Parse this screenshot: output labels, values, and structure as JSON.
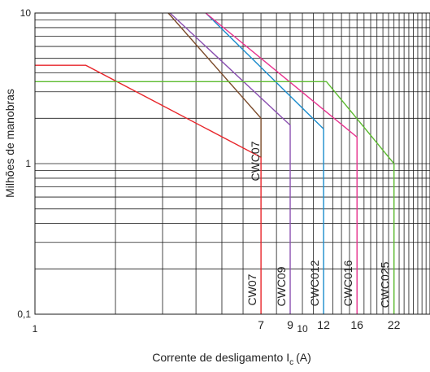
{
  "chart_data": {
    "type": "line",
    "xlabel": "Corrente de desligamento I",
    "xlabel_subscript": "c",
    "xlabel_unit": "(A)",
    "ylabel": "Milhões de manobras",
    "x_scale": "log",
    "y_scale": "log",
    "xlim": [
      1,
      30
    ],
    "ylim": [
      0.1,
      10
    ],
    "x_ticks": [
      "1",
      "7",
      "9",
      "10",
      "12",
      "16",
      "22"
    ],
    "y_ticks": [
      "0,1",
      "1",
      "10"
    ],
    "grid": true,
    "series": [
      {
        "color": "#e8262b",
        "name": "CWC07",
        "points": [
          [
            1,
            4.5
          ],
          [
            1.55,
            4.5
          ],
          [
            7,
            1.1
          ],
          [
            7,
            0.1
          ]
        ]
      },
      {
        "color": "#7b4a2a",
        "name": "",
        "points": [
          [
            3.15,
            10
          ],
          [
            7,
            2.0
          ],
          [
            7,
            1.1
          ]
        ]
      },
      {
        "color": "#8a4fb0",
        "name": "CWC09",
        "points": [
          [
            3.2,
            10
          ],
          [
            9,
            1.8
          ],
          [
            9,
            0.1
          ]
        ]
      },
      {
        "color": "#1a8ccc",
        "name": "CWC012",
        "points": [
          [
            4.35,
            10
          ],
          [
            12,
            1.7
          ],
          [
            12,
            0.1
          ]
        ]
      },
      {
        "color": "#e8338f",
        "name": "CWC016",
        "points": [
          [
            4.35,
            10
          ],
          [
            16,
            1.5
          ],
          [
            16,
            0.1
          ]
        ]
      },
      {
        "color": "#5cbb2f",
        "name": "CWC025",
        "points": [
          [
            1,
            3.5
          ],
          [
            12.3,
            3.5
          ],
          [
            22,
            1.0
          ],
          [
            22,
            0.1
          ]
        ]
      }
    ],
    "vertical_labels": [
      "CW07",
      "CWC07",
      "CWC09",
      "CWC012",
      "CWC016",
      "CWC025"
    ]
  }
}
